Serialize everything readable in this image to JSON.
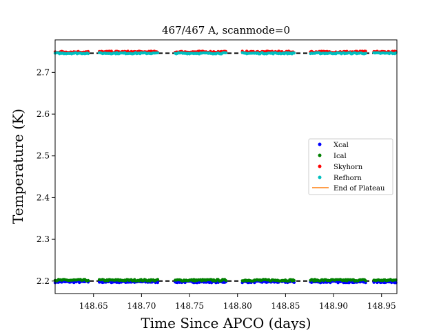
{
  "chart_data": {
    "type": "scatter",
    "title": "467/467 A, scanmode=0",
    "xlabel": "Time Since APCO (days)",
    "ylabel": "Temperature (K)",
    "xlim": [
      148.61,
      148.966
    ],
    "ylim": [
      2.17,
      2.778
    ],
    "xticks": [
      148.65,
      148.7,
      148.75,
      148.8,
      148.85,
      148.9,
      148.95
    ],
    "xtick_labels": [
      "148.65",
      "148.70",
      "148.75",
      "148.80",
      "148.85",
      "148.90",
      "148.95"
    ],
    "yticks": [
      2.2,
      2.3,
      2.4,
      2.5,
      2.6,
      2.7
    ],
    "ytick_labels": [
      "2.2",
      "2.3",
      "2.4",
      "2.5",
      "2.6",
      "2.7"
    ],
    "segments": [
      [
        148.61,
        148.645
      ],
      [
        148.656,
        148.718
      ],
      [
        148.735,
        148.788
      ],
      [
        148.805,
        148.86
      ],
      [
        148.876,
        148.934
      ],
      [
        148.942,
        148.966
      ]
    ],
    "series": [
      {
        "name": "Xcal",
        "color": "#0000ff",
        "marker": "dot",
        "level": 2.198,
        "noise": 0.002
      },
      {
        "name": "Ical",
        "color": "#008000",
        "marker": "dot",
        "level": 2.202,
        "noise": 0.002
      },
      {
        "name": "Skyhorn",
        "color": "#ff0000",
        "marker": "dot",
        "level": 2.749,
        "noise": 0.002
      },
      {
        "name": "Refhorn",
        "color": "#00bfbf",
        "marker": "dot",
        "level": 2.746,
        "noise": 0.0015
      }
    ],
    "end_of_plateau": {
      "name": "End of Plateau",
      "color": "#ff7f0e"
    },
    "reference_lines": [
      {
        "y": 2.2,
        "color": "#000000",
        "style": "dashed"
      },
      {
        "y": 2.746,
        "color": "#000000",
        "style": "dashed"
      }
    ],
    "legend_position": "center-right",
    "grid": false
  }
}
